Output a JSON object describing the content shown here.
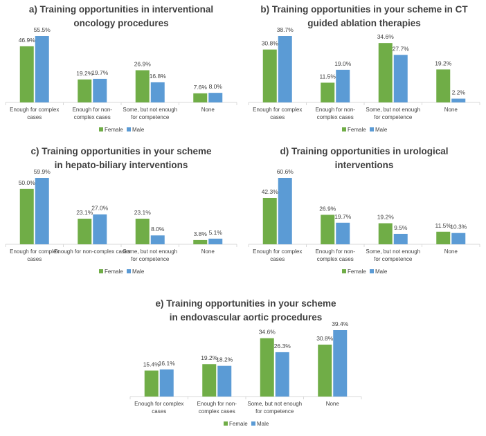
{
  "colors": {
    "female": "#70AD47",
    "male": "#5B9BD5",
    "axis": "#D9D9D9",
    "text": "#404040"
  },
  "legend": [
    "Female",
    "Male"
  ],
  "chart_data": [
    {
      "type": "bar",
      "title": [
        "a) Training opportunities in interventional",
        "oncology procedures"
      ],
      "categories": [
        [
          "Enough for complex",
          "cases"
        ],
        [
          "Enough for non-",
          "complex cases"
        ],
        [
          "Some, but not enough",
          "for competence"
        ],
        [
          "None"
        ]
      ],
      "series": [
        {
          "name": "Female",
          "values": [
            46.9,
            19.2,
            26.9,
            7.6
          ],
          "labels": [
            "46.9%",
            "19.2%",
            "26.9%",
            "7.6%"
          ]
        },
        {
          "name": "Male",
          "values": [
            55.5,
            19.7,
            16.8,
            8.0
          ],
          "labels": [
            "55.5%",
            "19.7%",
            "16.8%",
            "8.0%"
          ]
        }
      ],
      "legend_position": "bottom"
    },
    {
      "type": "bar",
      "title": [
        "b) Training opportunities in your scheme in CT",
        "guided ablation therapies"
      ],
      "categories": [
        [
          "Enough for complex",
          "cases"
        ],
        [
          "Enough for non-",
          "complex cases"
        ],
        [
          "Some, but not enough",
          "for competence"
        ],
        [
          "None"
        ]
      ],
      "series": [
        {
          "name": "Female",
          "values": [
            30.8,
            11.5,
            34.6,
            19.2
          ],
          "labels": [
            "30.8%",
            "11.5%",
            "34.6%",
            "19.2%"
          ]
        },
        {
          "name": "Male",
          "values": [
            38.7,
            19.0,
            27.7,
            2.2
          ],
          "labels": [
            "38.7%",
            "19.0%",
            "27.7%",
            "2.2%"
          ]
        }
      ],
      "legend_position": "bottom"
    },
    {
      "type": "bar",
      "title": [
        "c) Training opportunities in your scheme",
        "in hepato-biliary interventions"
      ],
      "categories": [
        [
          "Enough for complex",
          "cases"
        ],
        [
          "Enough for non-complex cases"
        ],
        [
          "Some, but not enough",
          "for competence"
        ],
        [
          "None"
        ]
      ],
      "series": [
        {
          "name": "Female",
          "values": [
            50.0,
            23.1,
            23.1,
            3.8
          ],
          "labels": [
            "50.0%",
            "23.1%",
            "23.1%",
            "3.8%"
          ]
        },
        {
          "name": "Male",
          "values": [
            59.9,
            27.0,
            8.0,
            5.1
          ],
          "labels": [
            "59.9%",
            "27.0%",
            "8.0%",
            "5.1%"
          ]
        }
      ],
      "legend_position": "bottom"
    },
    {
      "type": "bar",
      "title": [
        "d) Training opportunities in urological",
        "interventions"
      ],
      "categories": [
        [
          "Enough for complex",
          "cases"
        ],
        [
          "Enough for non-",
          "complex cases"
        ],
        [
          "Some, but not enough",
          "for competence"
        ],
        [
          "None"
        ]
      ],
      "series": [
        {
          "name": "Female",
          "values": [
            42.3,
            26.9,
            19.2,
            11.5
          ],
          "labels": [
            "42.3%",
            "26.9%",
            "19.2%",
            "11.5%"
          ]
        },
        {
          "name": "Male",
          "values": [
            60.6,
            19.7,
            9.5,
            10.3
          ],
          "labels": [
            "60.6%",
            "19.7%",
            "9.5%",
            "10.3%"
          ]
        }
      ],
      "legend_position": "bottom"
    },
    {
      "type": "bar",
      "title": [
        "e) Training opportunities in your scheme",
        "in endovascular aortic procedures"
      ],
      "categories": [
        [
          "Enough for complex",
          "cases"
        ],
        [
          "Enough for non-",
          "complex cases"
        ],
        [
          "Some, but not enough",
          "for competence"
        ],
        [
          "None"
        ]
      ],
      "series": [
        {
          "name": "Female",
          "values": [
            15.4,
            19.2,
            34.6,
            30.8
          ],
          "labels": [
            "15.4%",
            "19.2%",
            "34.6%",
            "30.8%"
          ]
        },
        {
          "name": "Male",
          "values": [
            16.1,
            18.2,
            26.3,
            39.4
          ],
          "labels": [
            "16.1%",
            "18.2%",
            "26.3%",
            "39.4%"
          ]
        }
      ],
      "legend_position": "bottom"
    }
  ]
}
